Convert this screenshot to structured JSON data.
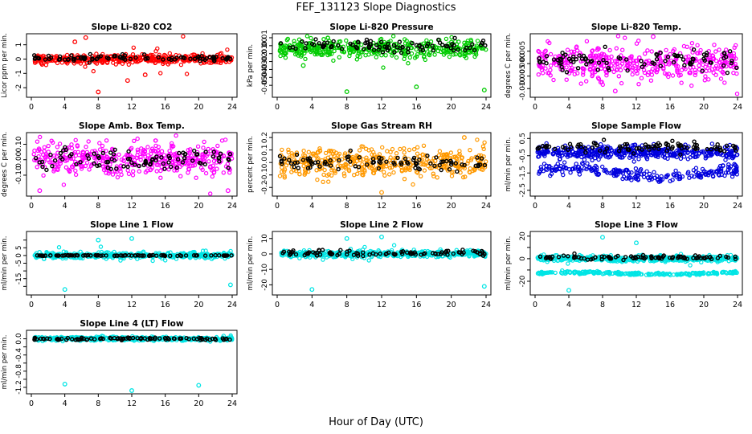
{
  "title": "FEF_131123  Slope Diagnostics",
  "xlabel": "Hour of Day (UTC)",
  "chart_data": [
    {
      "type": "scatter",
      "title": "Slope Li-820 CO2",
      "ylabel": "Licor ppm per min.",
      "color": "#ff0000",
      "xlim": [
        0,
        24
      ],
      "xticks": [
        0,
        4,
        8,
        12,
        16,
        20,
        24
      ],
      "ylim": [
        -2.5,
        1.6
      ],
      "yticks": [
        -2,
        -1,
        0,
        1
      ],
      "yticklabels": [
        "-2",
        "-1",
        "0",
        "1"
      ],
      "band": {
        "center": 0.0,
        "spread": 0.25,
        "outlier_spread": 1.2,
        "outliers": [
          [
            8,
            -2.3
          ],
          [
            6.5,
            1.5
          ],
          [
            5.2,
            1.2
          ],
          [
            11.5,
            -1.5
          ],
          [
            13.6,
            -1.1
          ]
        ]
      },
      "black": {
        "center": 0.05,
        "spread": 0.2
      }
    },
    {
      "type": "scatter",
      "title": "Slope Li-820 Pressure",
      "ylabel": "kPa per min.",
      "color": "#00cc00",
      "xlim": [
        0,
        24
      ],
      "xticks": [
        0,
        4,
        8,
        12,
        16,
        20,
        24
      ],
      "ylim": [
        -0.062,
        0.012
      ],
      "yticks": [
        -0.05,
        -0.04,
        -0.03,
        -0.02,
        -0.01,
        0.0,
        0.01
      ],
      "yticklabels": [
        "-0.05",
        "-0.04",
        "-0.03",
        "-0.02",
        "-0.01",
        "0.00",
        "0.01"
      ],
      "band": {
        "center": -0.004,
        "spread": 0.01,
        "outlier_spread": 0.02,
        "outliers": [
          [
            8,
            -0.058
          ],
          [
            16,
            -0.052
          ],
          [
            23.8,
            -0.056
          ],
          [
            3,
            -0.025
          ]
        ]
      },
      "black": {
        "center": 0.0,
        "spread": 0.008
      }
    },
    {
      "type": "scatter",
      "title": "Slope Li-820 Temp.",
      "ylabel": "degrees C per min.",
      "color": "#ff00ff",
      "xlim": [
        0,
        24
      ],
      "xticks": [
        0,
        4,
        8,
        12,
        16,
        20,
        24
      ],
      "ylim": [
        -0.0125,
        0.011
      ],
      "yticks": [
        -0.01,
        -0.005,
        0.0,
        0.005
      ],
      "yticklabels": [
        "-0.010",
        "-0.005",
        "0.000",
        "0.005"
      ],
      "band": {
        "center": 0.0,
        "spread": 0.006,
        "outlier_spread": 0.009,
        "outliers": [
          [
            14,
            0.0108
          ],
          [
            9.5,
            -0.011
          ]
        ]
      },
      "black": {
        "center": 0.001,
        "spread": 0.004
      }
    },
    {
      "type": "scatter",
      "title": "Slope Amb. Box Temp.",
      "ylabel": "degrees C per min.",
      "color": "#ff00ff",
      "xlim": [
        0,
        24
      ],
      "xticks": [
        0,
        4,
        8,
        12,
        16,
        20,
        24
      ],
      "ylim": [
        -0.22,
        0.16
      ],
      "yticks": [
        -0.1,
        0.0,
        0.1
      ],
      "yticklabels": [
        "-0.10",
        "0.00",
        "0.10"
      ],
      "band": {
        "center": 0.0,
        "spread": 0.09,
        "outlier_spread": 0.15,
        "outliers": [
          [
            1,
            -0.2
          ],
          [
            23.5,
            -0.2
          ]
        ]
      },
      "black": {
        "center": 0.0,
        "spread": 0.07
      }
    },
    {
      "type": "scatter",
      "title": "Slope Gas Stream RH",
      "ylabel": "percent per min.",
      "color": "#ff9900",
      "xlim": [
        0,
        24
      ],
      "xticks": [
        0,
        4,
        8,
        12,
        16,
        20,
        24
      ],
      "ylim": [
        -0.25,
        0.22
      ],
      "yticks": [
        -0.2,
        -0.1,
        0.0,
        0.1,
        0.2
      ],
      "yticklabels": [
        "-0.2",
        "-0.1",
        "0.0",
        "0.1",
        "0.2"
      ],
      "band": {
        "center": 0.0,
        "spread": 0.1,
        "outlier_spread": 0.16,
        "outliers": [
          [
            12,
            -0.24
          ],
          [
            21.5,
            0.2
          ]
        ]
      },
      "black": {
        "center": 0.0,
        "spread": 0.06
      }
    },
    {
      "type": "scatter",
      "title": "Slope Sample Flow",
      "ylabel": "ml/min per min.",
      "color": "#0000dd",
      "xlim": [
        0,
        24
      ],
      "xticks": [
        0,
        4,
        8,
        12,
        16,
        20,
        24
      ],
      "ylim": [
        -2.7,
        0.7
      ],
      "yticks": [
        -2.5,
        -1.5,
        -0.5,
        0.5
      ],
      "yticklabels": [
        "-2.5",
        "-1.5",
        "-0.5",
        "0.5"
      ],
      "band": {
        "center": -0.3,
        "spread": 0.35,
        "outlier_spread": 0.5,
        "outliers": []
      },
      "lower_band": {
        "center": -1.5,
        "spread": 0.45
      },
      "black": {
        "center": 0.0,
        "spread": 0.3
      }
    },
    {
      "type": "scatter",
      "title": "Slope Line 1 Flow",
      "ylabel": "ml/min per min.",
      "color": "#00e5e5",
      "xlim": [
        0,
        24
      ],
      "xticks": [
        0,
        4,
        8,
        12,
        16,
        20,
        24
      ],
      "ylim": [
        -24,
        14
      ],
      "yticks": [
        -20,
        -15,
        -10,
        -5,
        0,
        5,
        10
      ],
      "yticklabels": [
        "",
        "-15",
        "",
        "-5",
        "0",
        "5",
        ""
      ],
      "band": {
        "center": 0.0,
        "spread": 1.6,
        "outlier_spread": 4,
        "outliers": [
          [
            4,
            -22
          ],
          [
            8,
            10
          ],
          [
            12,
            11
          ],
          [
            23.8,
            -19
          ]
        ]
      },
      "black": {
        "center": 0.0,
        "spread": 0.25
      }
    },
    {
      "type": "scatter",
      "title": "Slope Line 2 Flow",
      "ylabel": "ml/min per min.",
      "color": "#00e5e5",
      "xlim": [
        0,
        24
      ],
      "xticks": [
        0,
        4,
        8,
        12,
        16,
        20,
        24
      ],
      "ylim": [
        -25,
        13
      ],
      "yticks": [
        -20,
        -10,
        0,
        10
      ],
      "yticklabels": [
        "-20",
        "-10",
        "0",
        "10"
      ],
      "band": {
        "center": 0.0,
        "spread": 1.8,
        "outlier_spread": 4,
        "outliers": [
          [
            4,
            -23
          ],
          [
            8,
            10
          ],
          [
            12,
            11
          ],
          [
            23.8,
            -21
          ]
        ]
      },
      "black": {
        "center": 0.5,
        "spread": 2.0
      }
    },
    {
      "type": "scatter",
      "title": "Slope Line 3 Flow",
      "ylabel": "ml/min per min.",
      "color": "#00e5e5",
      "xlim": [
        0,
        24
      ],
      "xticks": [
        0,
        4,
        8,
        12,
        16,
        20,
        24
      ],
      "ylim": [
        -30,
        22
      ],
      "yticks": [
        -20,
        -10,
        0,
        10,
        20
      ],
      "yticklabels": [
        "-20",
        "",
        "0",
        "",
        "20"
      ],
      "band": {
        "center": 0.0,
        "spread": 2.2,
        "outlier_spread": 4,
        "outliers": [
          [
            4,
            -28
          ],
          [
            8,
            19
          ],
          [
            12,
            14
          ]
        ]
      },
      "lower_band": {
        "center": -13,
        "spread": 1.5
      },
      "black": {
        "center": 1.0,
        "spread": 2.0
      }
    },
    {
      "type": "scatter",
      "title": "Slope Line 4 (LT) Flow",
      "ylabel": "ml/min per min.",
      "color": "#00e5e5",
      "xlim": [
        0,
        24
      ],
      "xticks": [
        0,
        4,
        8,
        12,
        16,
        20,
        24
      ],
      "ylim": [
        -1.3,
        0.15
      ],
      "yticks": [
        -1.2,
        -1.0,
        -0.8,
        -0.6,
        -0.4,
        -0.2,
        0.0
      ],
      "yticklabels": [
        "-1.2",
        "",
        "-0.8",
        "",
        "-0.4",
        "",
        "0.0"
      ],
      "band": {
        "center": 0.0,
        "spread": 0.04,
        "outlier_spread": 0.08,
        "outliers": [
          [
            4,
            -1.12
          ],
          [
            12,
            -1.28
          ],
          [
            20,
            -1.15
          ]
        ]
      },
      "black": {
        "center": 0.0,
        "spread": 0.03
      }
    }
  ]
}
